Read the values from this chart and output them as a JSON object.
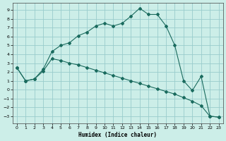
{
  "xlabel": "Humidex (Indice chaleur)",
  "xlim": [
    -0.5,
    23.5
  ],
  "ylim": [
    -3.8,
    9.8
  ],
  "yticks": [
    -3,
    -2,
    -1,
    0,
    1,
    2,
    3,
    4,
    5,
    6,
    7,
    8,
    9
  ],
  "xticks": [
    0,
    1,
    2,
    3,
    4,
    5,
    6,
    7,
    8,
    9,
    10,
    11,
    12,
    13,
    14,
    15,
    16,
    17,
    18,
    19,
    20,
    21,
    22,
    23
  ],
  "bg_color": "#cceee8",
  "grid_color": "#99cccc",
  "line_color": "#1a6b5e",
  "line1_x": [
    0,
    1,
    2,
    3,
    4,
    5,
    6,
    7,
    8,
    9,
    10,
    11,
    12,
    13,
    14,
    15,
    16,
    17,
    18,
    19,
    20,
    21,
    22,
    23
  ],
  "line1_y": [
    2.5,
    1.0,
    1.2,
    2.3,
    4.3,
    5.0,
    5.3,
    6.1,
    6.5,
    7.2,
    7.5,
    7.2,
    7.5,
    8.3,
    9.2,
    8.5,
    8.5,
    7.2,
    5.0,
    1.0,
    -0.1,
    1.5,
    -3.0,
    -3.1
  ],
  "line2_x": [
    0,
    1,
    2,
    3,
    4,
    5,
    6,
    7,
    8,
    9,
    10,
    11,
    12,
    13,
    14,
    15,
    16,
    17,
    18,
    19,
    20,
    21,
    22,
    23
  ],
  "line2_y": [
    2.5,
    1.0,
    1.2,
    2.1,
    3.5,
    3.3,
    3.0,
    2.8,
    2.5,
    2.2,
    1.9,
    1.6,
    1.3,
    1.0,
    0.7,
    0.4,
    0.1,
    -0.2,
    -0.5,
    -0.9,
    -1.3,
    -1.8,
    -3.0,
    -3.1
  ]
}
